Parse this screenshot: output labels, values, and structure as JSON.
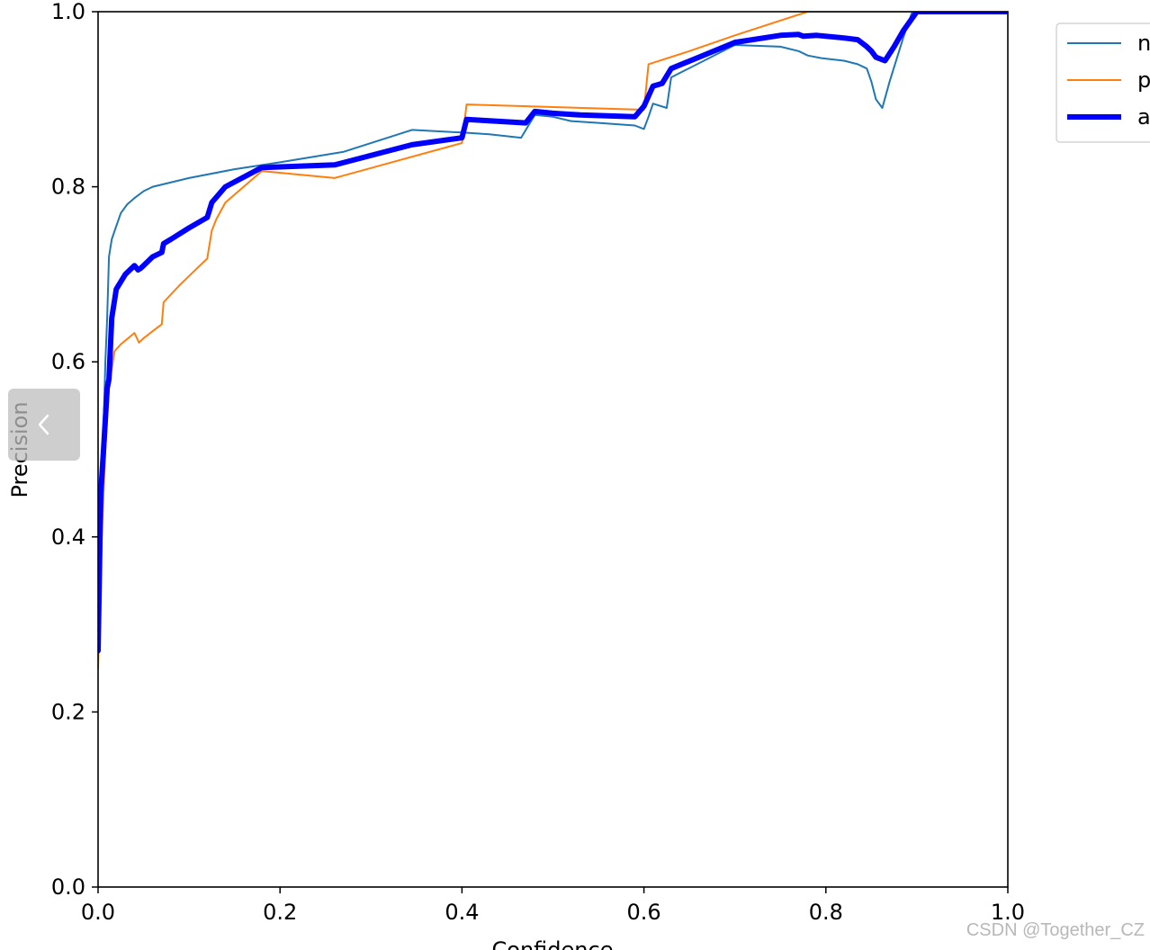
{
  "chart_data": {
    "type": "line",
    "title": "",
    "xlabel": "Confidence",
    "ylabel": "Precision",
    "xlim": [
      0,
      1
    ],
    "ylim": [
      0,
      1
    ],
    "xticks": [
      "0.0",
      "0.2",
      "0.4",
      "0.6",
      "0.8",
      "1.0"
    ],
    "yticks": [
      "0.0",
      "0.2",
      "0.4",
      "0.6",
      "0.8",
      "1.0"
    ],
    "legend_position": "upper-right, partially cut off",
    "series": [
      {
        "name": "n",
        "color": "#1f77b4",
        "width": "thin",
        "x": [
          0.0,
          0.004,
          0.008,
          0.01,
          0.012,
          0.015,
          0.02,
          0.025,
          0.032,
          0.04,
          0.05,
          0.06,
          0.1,
          0.15,
          0.2,
          0.27,
          0.345,
          0.4,
          0.43,
          0.465,
          0.48,
          0.5,
          0.52,
          0.55,
          0.59,
          0.6,
          0.605,
          0.61,
          0.625,
          0.63,
          0.7,
          0.75,
          0.77,
          0.78,
          0.795,
          0.82,
          0.835,
          0.845,
          0.85,
          0.855,
          0.862,
          0.87,
          0.885,
          0.895,
          1.0
        ],
        "y": [
          0.27,
          0.45,
          0.6,
          0.65,
          0.72,
          0.74,
          0.755,
          0.77,
          0.78,
          0.787,
          0.795,
          0.8,
          0.81,
          0.82,
          0.828,
          0.84,
          0.865,
          0.862,
          0.86,
          0.856,
          0.882,
          0.88,
          0.875,
          0.873,
          0.87,
          0.866,
          0.88,
          0.895,
          0.89,
          0.925,
          0.962,
          0.96,
          0.955,
          0.95,
          0.947,
          0.944,
          0.94,
          0.935,
          0.92,
          0.9,
          0.89,
          0.92,
          0.97,
          1.0,
          1.0
        ]
      },
      {
        "name": "p",
        "color": "#ff7f0e",
        "width": "thin",
        "x": [
          0.0,
          0.004,
          0.008,
          0.012,
          0.018,
          0.025,
          0.04,
          0.045,
          0.05,
          0.06,
          0.07,
          0.072,
          0.09,
          0.1,
          0.12,
          0.125,
          0.13,
          0.14,
          0.18,
          0.26,
          0.4,
          0.405,
          0.6,
          0.605,
          0.65,
          0.7,
          0.78,
          1.0
        ],
        "y": [
          0.25,
          0.4,
          0.5,
          0.57,
          0.612,
          0.62,
          0.633,
          0.622,
          0.627,
          0.635,
          0.643,
          0.668,
          0.688,
          0.698,
          0.718,
          0.75,
          0.763,
          0.782,
          0.818,
          0.81,
          0.85,
          0.894,
          0.888,
          0.94,
          0.955,
          0.973,
          1.0,
          1.0
        ]
      },
      {
        "name": "a",
        "color": "#0000ff",
        "width": "thick",
        "x": [
          0.0,
          0.003,
          0.006,
          0.01,
          0.012,
          0.015,
          0.02,
          0.03,
          0.04,
          0.044,
          0.047,
          0.05,
          0.06,
          0.07,
          0.072,
          0.08,
          0.1,
          0.12,
          0.125,
          0.14,
          0.18,
          0.26,
          0.345,
          0.4,
          0.405,
          0.47,
          0.48,
          0.5,
          0.53,
          0.59,
          0.6,
          0.61,
          0.62,
          0.63,
          0.7,
          0.75,
          0.77,
          0.775,
          0.79,
          0.82,
          0.835,
          0.845,
          0.85,
          0.855,
          0.865,
          0.875,
          0.885,
          0.9,
          1.0
        ],
        "y": [
          0.27,
          0.45,
          0.5,
          0.57,
          0.58,
          0.65,
          0.683,
          0.7,
          0.71,
          0.705,
          0.707,
          0.71,
          0.72,
          0.725,
          0.735,
          0.74,
          0.753,
          0.765,
          0.782,
          0.8,
          0.822,
          0.825,
          0.848,
          0.856,
          0.877,
          0.873,
          0.886,
          0.884,
          0.882,
          0.88,
          0.892,
          0.915,
          0.918,
          0.935,
          0.965,
          0.973,
          0.974,
          0.972,
          0.973,
          0.97,
          0.968,
          0.96,
          0.955,
          0.948,
          0.944,
          0.96,
          0.978,
          1.0,
          1.0
        ]
      }
    ]
  },
  "watermark": "CSDN @Together_CZ"
}
